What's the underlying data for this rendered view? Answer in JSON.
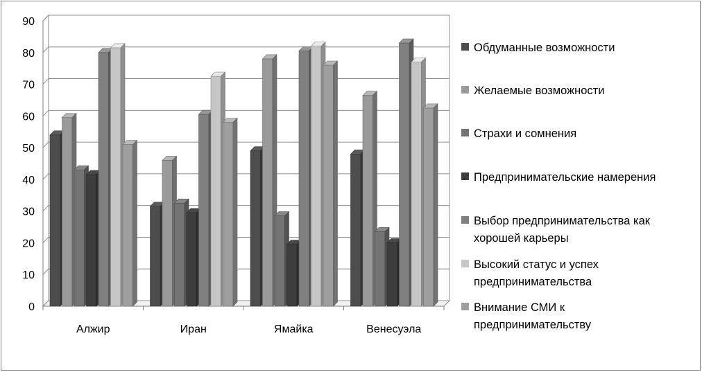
{
  "chart_data": {
    "type": "bar",
    "categories": [
      "Алжир",
      "Иран",
      "Ямайка",
      "Венесуэла"
    ],
    "ylim": [
      0,
      90
    ],
    "yticks": [
      0,
      10,
      20,
      30,
      40,
      50,
      60,
      70,
      80,
      90
    ],
    "grid": true,
    "legend_position": "right",
    "series": [
      {
        "name": "Обдуманные возможности",
        "color": "#4d4d4d",
        "values": [
          54,
          31.5,
          49,
          48
        ]
      },
      {
        "name": "Желаемые возможности",
        "color": "#9a9a9a",
        "values": [
          59.5,
          46,
          78,
          66.5
        ]
      },
      {
        "name": "Страхи и сомнения",
        "color": "#737373",
        "values": [
          43,
          32.5,
          28.5,
          23.5
        ]
      },
      {
        "name": "Предпринимательские намерения",
        "color": "#3d3d3d",
        "values": [
          41.5,
          29.5,
          19.5,
          20
        ]
      },
      {
        "name": "Выбор предпринимательства как хорошей карьеры",
        "color": "#808080",
        "values": [
          80,
          60.5,
          80.5,
          83
        ]
      },
      {
        "name": "Высокий статус и успех предпринимательства",
        "color": "#c6c6c6",
        "values": [
          81.5,
          72.5,
          82,
          77
        ]
      },
      {
        "name": "Внимание СМИ к предпринимательству",
        "color": "#9e9e9e",
        "values": [
          51,
          58,
          76,
          62.5
        ]
      }
    ]
  }
}
